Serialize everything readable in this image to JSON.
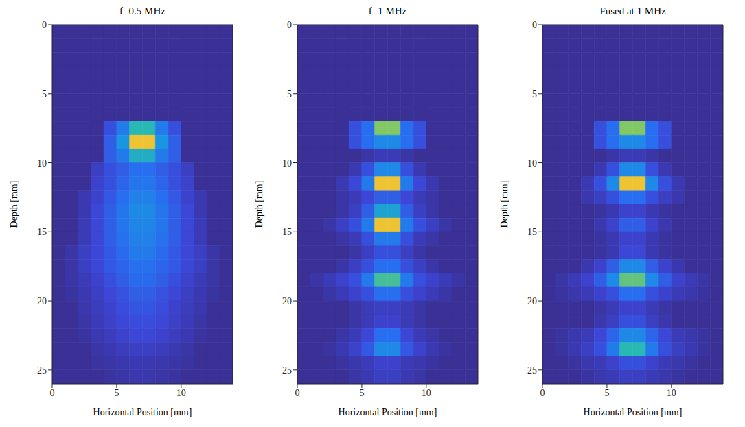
{
  "chart_data": [
    {
      "type": "heatmap",
      "title": "f=0.5 MHz",
      "x_label": "Horizontal Position [mm]",
      "y_label": "Depth [mm]",
      "xlim": [
        0,
        14
      ],
      "xticks": [
        0,
        5,
        10
      ],
      "ylim": [
        26,
        0
      ],
      "yticks": [
        0,
        5,
        10,
        15,
        20,
        25
      ],
      "x_edges": [
        0,
        1,
        2,
        3,
        4,
        5,
        6,
        7,
        8,
        9,
        10,
        11,
        12,
        13,
        14
      ],
      "y_edges": [
        0,
        1,
        2,
        3,
        4,
        5,
        6,
        7,
        8,
        9,
        10,
        11,
        12,
        13,
        14,
        15,
        16,
        17,
        18,
        19,
        20,
        21,
        22,
        23,
        24,
        25,
        26
      ],
      "cells": [
        [
          0,
          0,
          0,
          0,
          0,
          0,
          0,
          0,
          0,
          0,
          0,
          0,
          0,
          0
        ],
        [
          0,
          0,
          0,
          0,
          0,
          0,
          0,
          0,
          0,
          0,
          0,
          0,
          0,
          0
        ],
        [
          0,
          0,
          0,
          0,
          0,
          0,
          0,
          0,
          0,
          0,
          0,
          0,
          0,
          0
        ],
        [
          0,
          0,
          0,
          0,
          0,
          0,
          0,
          0,
          0,
          0,
          0,
          0,
          0,
          0
        ],
        [
          0,
          0,
          0,
          0,
          0,
          0,
          0,
          0,
          0,
          0,
          0,
          0,
          0,
          0
        ],
        [
          0,
          0,
          0,
          0,
          0,
          0,
          0,
          0,
          0,
          0,
          0,
          0,
          0,
          0
        ],
        [
          0,
          0,
          0,
          0,
          0,
          0,
          0,
          0,
          0,
          0,
          0,
          0,
          0,
          0
        ],
        [
          0,
          0,
          0,
          0,
          0.15,
          0.3,
          0.55,
          0.55,
          0.3,
          0.15,
          0,
          0,
          0,
          0
        ],
        [
          0,
          0,
          0,
          0,
          0.2,
          0.4,
          0.85,
          0.85,
          0.4,
          0.2,
          0,
          0,
          0,
          0
        ],
        [
          0,
          0,
          0,
          0,
          0.2,
          0.3,
          0.5,
          0.5,
          0.3,
          0.2,
          0,
          0,
          0,
          0
        ],
        [
          0,
          0,
          0,
          0.08,
          0.15,
          0.2,
          0.25,
          0.25,
          0.2,
          0.15,
          0.08,
          0,
          0,
          0
        ],
        [
          0,
          0,
          0,
          0.1,
          0.15,
          0.22,
          0.28,
          0.28,
          0.22,
          0.15,
          0.1,
          0,
          0,
          0
        ],
        [
          0,
          0,
          0.05,
          0.1,
          0.18,
          0.25,
          0.32,
          0.32,
          0.25,
          0.18,
          0.1,
          0.05,
          0,
          0
        ],
        [
          0,
          0,
          0.05,
          0.12,
          0.2,
          0.28,
          0.36,
          0.36,
          0.28,
          0.2,
          0.12,
          0.05,
          0,
          0
        ],
        [
          0,
          0,
          0.06,
          0.12,
          0.2,
          0.28,
          0.34,
          0.34,
          0.28,
          0.2,
          0.12,
          0.06,
          0,
          0
        ],
        [
          0,
          0,
          0.06,
          0.12,
          0.2,
          0.26,
          0.32,
          0.32,
          0.26,
          0.2,
          0.12,
          0.06,
          0,
          0
        ],
        [
          0,
          0.03,
          0.08,
          0.12,
          0.18,
          0.24,
          0.3,
          0.3,
          0.24,
          0.18,
          0.12,
          0.08,
          0.03,
          0
        ],
        [
          0,
          0.03,
          0.08,
          0.12,
          0.18,
          0.22,
          0.26,
          0.26,
          0.22,
          0.18,
          0.12,
          0.08,
          0.03,
          0
        ],
        [
          0,
          0.03,
          0.06,
          0.1,
          0.15,
          0.2,
          0.24,
          0.24,
          0.2,
          0.15,
          0.1,
          0.06,
          0.03,
          0
        ],
        [
          0,
          0.02,
          0.05,
          0.08,
          0.12,
          0.16,
          0.2,
          0.2,
          0.16,
          0.12,
          0.08,
          0.05,
          0.02,
          0
        ],
        [
          0,
          0,
          0.04,
          0.07,
          0.1,
          0.14,
          0.17,
          0.17,
          0.14,
          0.1,
          0.07,
          0.04,
          0,
          0
        ],
        [
          0,
          0,
          0.03,
          0.06,
          0.09,
          0.12,
          0.14,
          0.14,
          0.12,
          0.09,
          0.06,
          0.03,
          0,
          0
        ],
        [
          0,
          0,
          0.02,
          0.05,
          0.07,
          0.1,
          0.12,
          0.12,
          0.1,
          0.07,
          0.05,
          0.02,
          0,
          0
        ],
        [
          0,
          0,
          0,
          0.03,
          0.05,
          0.07,
          0.08,
          0.08,
          0.07,
          0.05,
          0.03,
          0,
          0,
          0
        ],
        [
          0,
          0,
          0,
          0.02,
          0.03,
          0.04,
          0.05,
          0.05,
          0.04,
          0.03,
          0.02,
          0,
          0,
          0
        ],
        [
          0,
          0,
          0,
          0,
          0.02,
          0.03,
          0.04,
          0.04,
          0.03,
          0.02,
          0,
          0,
          0,
          0
        ]
      ]
    },
    {
      "type": "heatmap",
      "title": "f=1 MHz",
      "x_label": "Horizontal Position [mm]",
      "y_label": "Depth [mm]",
      "xlim": [
        0,
        14
      ],
      "xticks": [
        0,
        5,
        10
      ],
      "ylim": [
        26,
        0
      ],
      "yticks": [
        0,
        5,
        10,
        15,
        20,
        25
      ],
      "x_edges": [
        0,
        1,
        2,
        3,
        4,
        5,
        6,
        7,
        8,
        9,
        10,
        11,
        12,
        13,
        14
      ],
      "y_edges": [
        0,
        1,
        2,
        3,
        4,
        5,
        6,
        7,
        8,
        9,
        10,
        11,
        12,
        13,
        14,
        15,
        16,
        17,
        18,
        19,
        20,
        21,
        22,
        23,
        24,
        25,
        26
      ],
      "cells": [
        [
          0,
          0,
          0,
          0,
          0,
          0,
          0,
          0,
          0,
          0,
          0,
          0,
          0,
          0
        ],
        [
          0,
          0,
          0,
          0,
          0,
          0,
          0,
          0,
          0,
          0,
          0,
          0,
          0,
          0
        ],
        [
          0,
          0,
          0,
          0,
          0,
          0,
          0,
          0,
          0,
          0,
          0,
          0,
          0,
          0
        ],
        [
          0,
          0,
          0,
          0,
          0,
          0,
          0,
          0,
          0,
          0,
          0,
          0,
          0,
          0
        ],
        [
          0,
          0,
          0,
          0,
          0,
          0,
          0,
          0,
          0,
          0,
          0,
          0,
          0,
          0
        ],
        [
          0,
          0,
          0,
          0,
          0,
          0,
          0,
          0,
          0,
          0,
          0,
          0,
          0,
          0
        ],
        [
          0,
          0,
          0,
          0,
          0,
          0,
          0,
          0,
          0,
          0,
          0,
          0,
          0,
          0
        ],
        [
          0,
          0,
          0,
          0,
          0.15,
          0.25,
          0.7,
          0.7,
          0.25,
          0.15,
          0,
          0,
          0,
          0
        ],
        [
          0,
          0,
          0,
          0,
          0.15,
          0.25,
          0.35,
          0.35,
          0.25,
          0.15,
          0,
          0,
          0,
          0
        ],
        [
          0,
          0,
          0,
          0,
          0,
          0.03,
          0.06,
          0.06,
          0.03,
          0,
          0,
          0,
          0,
          0
        ],
        [
          0,
          0,
          0,
          0,
          0.05,
          0.15,
          0.35,
          0.35,
          0.15,
          0.05,
          0,
          0,
          0,
          0
        ],
        [
          0,
          0,
          0,
          0.05,
          0.12,
          0.3,
          0.85,
          0.85,
          0.3,
          0.12,
          0.05,
          0,
          0,
          0
        ],
        [
          0,
          0,
          0,
          0.03,
          0.06,
          0.12,
          0.2,
          0.2,
          0.12,
          0.06,
          0.03,
          0,
          0,
          0
        ],
        [
          0,
          0,
          0,
          0.03,
          0.08,
          0.2,
          0.45,
          0.45,
          0.2,
          0.08,
          0.03,
          0,
          0,
          0
        ],
        [
          0,
          0,
          0.03,
          0.08,
          0.15,
          0.3,
          0.85,
          0.85,
          0.3,
          0.15,
          0.08,
          0.03,
          0,
          0
        ],
        [
          0,
          0,
          0,
          0.03,
          0.06,
          0.15,
          0.3,
          0.3,
          0.15,
          0.06,
          0.03,
          0,
          0,
          0
        ],
        [
          0,
          0,
          0,
          0,
          0.03,
          0.08,
          0.15,
          0.15,
          0.08,
          0.03,
          0,
          0,
          0,
          0
        ],
        [
          0,
          0,
          0,
          0.03,
          0.08,
          0.15,
          0.25,
          0.25,
          0.15,
          0.08,
          0.03,
          0,
          0,
          0
        ],
        [
          0,
          0.03,
          0.06,
          0.1,
          0.15,
          0.3,
          0.6,
          0.6,
          0.3,
          0.15,
          0.1,
          0.06,
          0.03,
          0
        ],
        [
          0,
          0,
          0.03,
          0.06,
          0.1,
          0.15,
          0.25,
          0.25,
          0.15,
          0.1,
          0.06,
          0.03,
          0,
          0
        ],
        [
          0,
          0,
          0,
          0,
          0.03,
          0.06,
          0.08,
          0.08,
          0.06,
          0.03,
          0,
          0,
          0,
          0
        ],
        [
          0,
          0,
          0,
          0,
          0.03,
          0.06,
          0.1,
          0.1,
          0.06,
          0.03,
          0,
          0,
          0,
          0
        ],
        [
          0,
          0,
          0,
          0.03,
          0.06,
          0.12,
          0.25,
          0.25,
          0.12,
          0.06,
          0.03,
          0,
          0,
          0
        ],
        [
          0,
          0,
          0.02,
          0.05,
          0.1,
          0.18,
          0.35,
          0.35,
          0.18,
          0.1,
          0.05,
          0.02,
          0,
          0
        ],
        [
          0,
          0,
          0,
          0.02,
          0.04,
          0.06,
          0.1,
          0.1,
          0.06,
          0.04,
          0.02,
          0,
          0,
          0
        ],
        [
          0,
          0,
          0,
          0,
          0.03,
          0.05,
          0.08,
          0.08,
          0.05,
          0.03,
          0,
          0,
          0,
          0
        ]
      ]
    },
    {
      "type": "heatmap",
      "title": "Fused at 1 MHz",
      "x_label": "Horizontal Position [mm]",
      "y_label": "Depth [mm]",
      "xlim": [
        0,
        14
      ],
      "xticks": [
        0,
        5,
        10
      ],
      "ylim": [
        26,
        0
      ],
      "yticks": [
        0,
        5,
        10,
        15,
        20,
        25
      ],
      "x_edges": [
        0,
        1,
        2,
        3,
        4,
        5,
        6,
        7,
        8,
        9,
        10,
        11,
        12,
        13,
        14
      ],
      "y_edges": [
        0,
        1,
        2,
        3,
        4,
        5,
        6,
        7,
        8,
        9,
        10,
        11,
        12,
        13,
        14,
        15,
        16,
        17,
        18,
        19,
        20,
        21,
        22,
        23,
        24,
        25,
        26
      ],
      "cells": [
        [
          0,
          0,
          0,
          0,
          0,
          0,
          0,
          0,
          0,
          0,
          0,
          0,
          0,
          0
        ],
        [
          0,
          0,
          0,
          0,
          0,
          0,
          0,
          0,
          0,
          0,
          0,
          0,
          0,
          0
        ],
        [
          0,
          0,
          0,
          0,
          0,
          0,
          0,
          0,
          0,
          0,
          0,
          0,
          0,
          0
        ],
        [
          0,
          0,
          0,
          0,
          0,
          0,
          0,
          0,
          0,
          0,
          0,
          0,
          0,
          0
        ],
        [
          0,
          0,
          0,
          0,
          0,
          0,
          0,
          0,
          0,
          0,
          0,
          0,
          0,
          0
        ],
        [
          0,
          0,
          0,
          0,
          0,
          0,
          0,
          0,
          0,
          0,
          0,
          0,
          0,
          0
        ],
        [
          0,
          0,
          0,
          0,
          0,
          0,
          0,
          0,
          0,
          0,
          0,
          0,
          0,
          0
        ],
        [
          0,
          0,
          0,
          0,
          0.15,
          0.25,
          0.7,
          0.7,
          0.25,
          0.15,
          0,
          0,
          0,
          0
        ],
        [
          0,
          0,
          0,
          0,
          0.15,
          0.25,
          0.35,
          0.35,
          0.25,
          0.15,
          0,
          0,
          0,
          0
        ],
        [
          0,
          0,
          0,
          0,
          0,
          0.03,
          0.06,
          0.06,
          0.03,
          0,
          0,
          0,
          0,
          0
        ],
        [
          0,
          0,
          0,
          0,
          0.05,
          0.15,
          0.35,
          0.35,
          0.15,
          0.05,
          0,
          0,
          0,
          0
        ],
        [
          0,
          0,
          0,
          0.05,
          0.15,
          0.35,
          0.85,
          0.85,
          0.35,
          0.15,
          0.05,
          0,
          0,
          0
        ],
        [
          0,
          0,
          0,
          0.04,
          0.08,
          0.15,
          0.25,
          0.25,
          0.15,
          0.08,
          0.04,
          0,
          0,
          0
        ],
        [
          0,
          0,
          0,
          0,
          0.02,
          0.05,
          0.1,
          0.1,
          0.05,
          0.02,
          0,
          0,
          0,
          0
        ],
        [
          0,
          0,
          0,
          0,
          0.04,
          0.1,
          0.2,
          0.2,
          0.1,
          0.04,
          0,
          0,
          0,
          0
        ],
        [
          0,
          0,
          0,
          0,
          0.02,
          0.05,
          0.1,
          0.1,
          0.05,
          0.02,
          0,
          0,
          0,
          0
        ],
        [
          0,
          0,
          0,
          0,
          0.02,
          0.05,
          0.12,
          0.12,
          0.05,
          0.02,
          0,
          0,
          0,
          0
        ],
        [
          0,
          0,
          0,
          0.04,
          0.1,
          0.2,
          0.35,
          0.35,
          0.2,
          0.1,
          0.04,
          0,
          0,
          0
        ],
        [
          0,
          0.03,
          0.06,
          0.1,
          0.2,
          0.35,
          0.65,
          0.65,
          0.35,
          0.2,
          0.1,
          0.06,
          0.03,
          0
        ],
        [
          0,
          0.02,
          0.04,
          0.06,
          0.1,
          0.15,
          0.25,
          0.25,
          0.15,
          0.1,
          0.06,
          0.04,
          0.02,
          0
        ],
        [
          0,
          0,
          0,
          0,
          0.03,
          0.06,
          0.1,
          0.1,
          0.06,
          0.03,
          0,
          0,
          0,
          0
        ],
        [
          0,
          0,
          0,
          0,
          0.04,
          0.08,
          0.15,
          0.15,
          0.08,
          0.04,
          0,
          0,
          0,
          0
        ],
        [
          0,
          0.02,
          0.04,
          0.06,
          0.12,
          0.22,
          0.35,
          0.35,
          0.22,
          0.12,
          0.06,
          0.04,
          0.02,
          0
        ],
        [
          0,
          0.02,
          0.05,
          0.08,
          0.15,
          0.3,
          0.55,
          0.55,
          0.3,
          0.15,
          0.08,
          0.05,
          0.02,
          0
        ],
        [
          0,
          0,
          0.02,
          0.04,
          0.06,
          0.1,
          0.15,
          0.15,
          0.1,
          0.06,
          0.04,
          0.02,
          0,
          0
        ],
        [
          0,
          0,
          0,
          0.02,
          0.04,
          0.06,
          0.08,
          0.08,
          0.06,
          0.04,
          0.02,
          0,
          0,
          0
        ]
      ]
    }
  ]
}
